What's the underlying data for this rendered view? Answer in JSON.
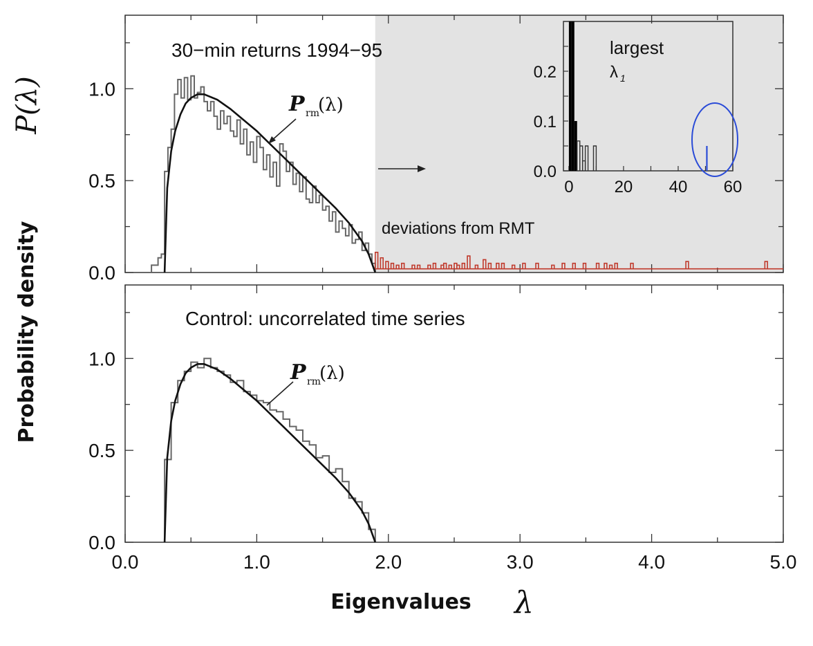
{
  "figure": {
    "ylabel": "Probability density",
    "ylabel_symbol": "P(λ)",
    "xlabel": "Eigenvalues",
    "xlabel_symbol": "λ"
  },
  "chart_data": [
    {
      "type": "line",
      "panel": "top",
      "title": "30−min returns 1994−95",
      "curve_label_main": "P",
      "curve_label_sub": "rm",
      "curve_label_arg": "(λ)",
      "annotation": "deviations from RMT",
      "xlim": [
        0,
        5
      ],
      "ylim": [
        0,
        1.4
      ],
      "yticks": [
        "0.0",
        "0.5",
        "1.0"
      ],
      "shaded_region_x": [
        1.9,
        5.0
      ],
      "colors": {
        "histogram": "#666666",
        "theory": "#111111",
        "deviations": "#c0392b",
        "shade": "#e3e3e3"
      },
      "series": [
        {
          "kind": "histogram",
          "bin_width": 0.025,
          "x": [
            0.2,
            0.225,
            0.25,
            0.275,
            0.3,
            0.325,
            0.35,
            0.375,
            0.4,
            0.425,
            0.45,
            0.475,
            0.5,
            0.525,
            0.55,
            0.575,
            0.6,
            0.625,
            0.65,
            0.675,
            0.7,
            0.725,
            0.75,
            0.775,
            0.8,
            0.825,
            0.85,
            0.875,
            0.9,
            0.925,
            0.95,
            0.975,
            1.0,
            1.025,
            1.05,
            1.075,
            1.1,
            1.125,
            1.15,
            1.175,
            1.2,
            1.225,
            1.25,
            1.275,
            1.3,
            1.325,
            1.35,
            1.375,
            1.4,
            1.425,
            1.45,
            1.475,
            1.5,
            1.525,
            1.55,
            1.575,
            1.6,
            1.625,
            1.65,
            1.675,
            1.7,
            1.725,
            1.75,
            1.775,
            1.8,
            1.825,
            1.85,
            1.875
          ],
          "y": [
            0.04,
            0.04,
            0.08,
            0.1,
            0.55,
            0.68,
            0.78,
            0.97,
            1.05,
            0.95,
            1.06,
            0.94,
            1.07,
            0.95,
            0.98,
            1.01,
            0.93,
            0.88,
            0.93,
            0.85,
            0.78,
            0.88,
            0.81,
            0.85,
            0.77,
            0.74,
            0.83,
            0.7,
            0.78,
            0.64,
            0.71,
            0.6,
            0.74,
            0.68,
            0.56,
            0.64,
            0.52,
            0.6,
            0.47,
            0.7,
            0.66,
            0.55,
            0.6,
            0.48,
            0.54,
            0.44,
            0.52,
            0.4,
            0.38,
            0.47,
            0.38,
            0.42,
            0.34,
            0.36,
            0.28,
            0.33,
            0.22,
            0.28,
            0.24,
            0.2,
            0.26,
            0.16,
            0.18,
            0.22,
            0.12,
            0.16,
            0.1,
            0.05
          ]
        },
        {
          "kind": "deviation-spikes",
          "x": [
            1.9,
            1.94,
            1.98,
            2.02,
            2.06,
            2.1,
            2.18,
            2.22,
            2.3,
            2.34,
            2.4,
            2.42,
            2.46,
            2.5,
            2.52,
            2.56,
            2.6,
            2.66,
            2.72,
            2.76,
            2.82,
            2.86,
            2.94,
            3.02,
            3.12,
            3.24,
            3.32,
            3.4,
            3.48,
            3.58,
            3.64,
            3.68,
            3.72,
            3.84,
            4.26,
            4.86
          ],
          "y": [
            0.11,
            0.08,
            0.06,
            0.05,
            0.04,
            0.05,
            0.04,
            0.04,
            0.04,
            0.05,
            0.04,
            0.05,
            0.04,
            0.05,
            0.04,
            0.05,
            0.09,
            0.04,
            0.07,
            0.05,
            0.05,
            0.05,
            0.04,
            0.05,
            0.05,
            0.04,
            0.05,
            0.05,
            0.05,
            0.05,
            0.05,
            0.04,
            0.05,
            0.05,
            0.06,
            0.06
          ]
        },
        {
          "kind": "theory",
          "x": [
            0.3,
            0.32,
            0.35,
            0.38,
            0.42,
            0.46,
            0.5,
            0.55,
            0.6,
            0.7,
            0.8,
            0.9,
            1.0,
            1.1,
            1.2,
            1.3,
            1.4,
            1.5,
            1.6,
            1.7,
            1.8,
            1.85,
            1.9
          ],
          "y": [
            0.0,
            0.46,
            0.66,
            0.77,
            0.86,
            0.92,
            0.95,
            0.97,
            0.97,
            0.94,
            0.89,
            0.83,
            0.77,
            0.7,
            0.63,
            0.56,
            0.49,
            0.42,
            0.35,
            0.27,
            0.17,
            0.1,
            0.0
          ]
        }
      ],
      "inset": {
        "type": "bar",
        "title": "largest",
        "title_symbol": "λ",
        "title_subscript": "1",
        "xlim": [
          -2,
          60
        ],
        "ylim": [
          0,
          0.3
        ],
        "xticks": [
          "0",
          "20",
          "40",
          "60"
        ],
        "yticks": [
          "0.0",
          "0.1",
          "0.2"
        ],
        "highlight_color": "#2a4bd7",
        "bins_x": [
          0.5,
          1.5,
          2.5,
          3.5,
          4.5,
          5.5,
          6.5,
          9.5,
          50.5
        ],
        "bins_y": [
          0.3,
          0.3,
          0.1,
          0.06,
          0.05,
          0.02,
          0.05,
          0.05,
          0.05
        ],
        "highlight_x": 50.5
      }
    },
    {
      "type": "line",
      "panel": "bottom",
      "title": "Control: uncorrelated time series",
      "curve_label_main": "P",
      "curve_label_sub": "rm",
      "curve_label_arg": "(λ)",
      "xlim": [
        0,
        5
      ],
      "ylim": [
        0,
        1.4
      ],
      "xticks": [
        "0.0",
        "1.0",
        "2.0",
        "3.0",
        "4.0",
        "5.0"
      ],
      "yticks": [
        "0.0",
        "0.5",
        "1.0"
      ],
      "series": [
        {
          "kind": "histogram",
          "bin_width": 0.05,
          "x": [
            0.3,
            0.35,
            0.4,
            0.45,
            0.5,
            0.55,
            0.6,
            0.65,
            0.7,
            0.75,
            0.8,
            0.85,
            0.9,
            0.95,
            1.0,
            1.05,
            1.1,
            1.15,
            1.2,
            1.25,
            1.3,
            1.35,
            1.4,
            1.45,
            1.5,
            1.55,
            1.6,
            1.65,
            1.7,
            1.75,
            1.8,
            1.85
          ],
          "y": [
            0.45,
            0.76,
            0.88,
            0.93,
            0.98,
            0.95,
            1.0,
            0.95,
            0.93,
            0.91,
            0.87,
            0.88,
            0.82,
            0.8,
            0.77,
            0.76,
            0.72,
            0.71,
            0.67,
            0.63,
            0.61,
            0.55,
            0.53,
            0.46,
            0.47,
            0.38,
            0.4,
            0.33,
            0.24,
            0.22,
            0.16,
            0.07
          ]
        },
        {
          "kind": "theory",
          "x": [
            0.3,
            0.32,
            0.35,
            0.38,
            0.42,
            0.46,
            0.5,
            0.55,
            0.6,
            0.7,
            0.8,
            0.9,
            1.0,
            1.1,
            1.2,
            1.3,
            1.4,
            1.5,
            1.6,
            1.7,
            1.8,
            1.85,
            1.9
          ],
          "y": [
            0.0,
            0.46,
            0.66,
            0.77,
            0.86,
            0.92,
            0.95,
            0.97,
            0.97,
            0.94,
            0.89,
            0.83,
            0.77,
            0.7,
            0.63,
            0.56,
            0.49,
            0.42,
            0.35,
            0.27,
            0.17,
            0.1,
            0.0
          ]
        }
      ]
    }
  ]
}
